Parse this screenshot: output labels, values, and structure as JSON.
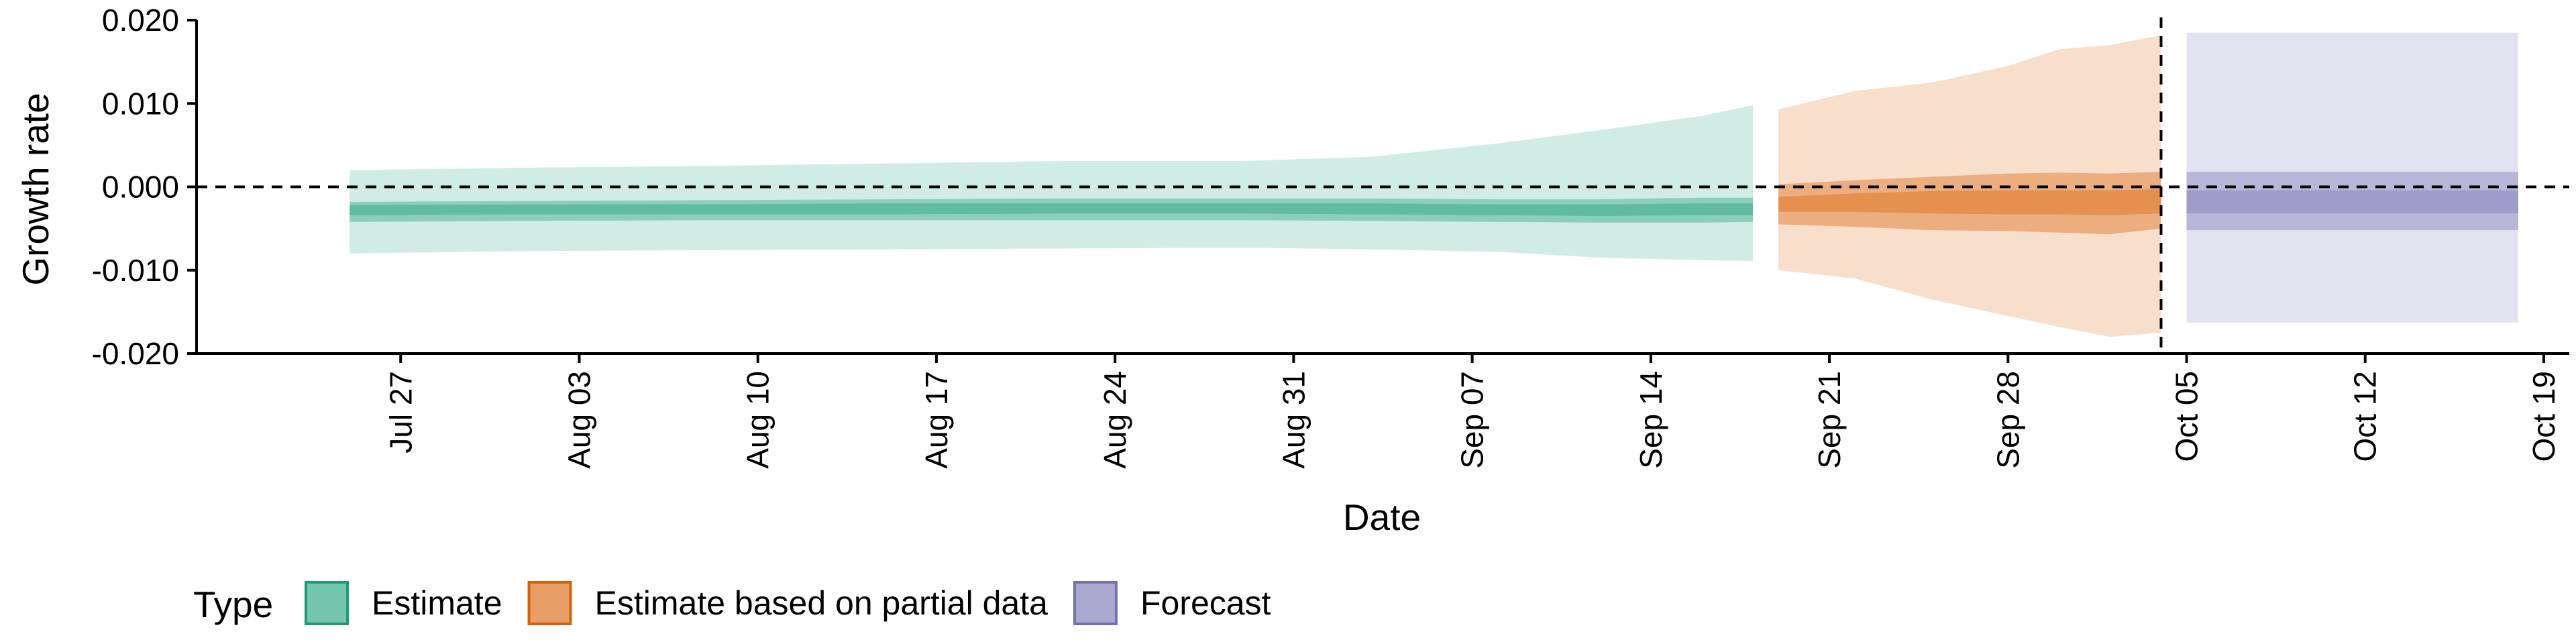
{
  "chart_data": {
    "type": "area",
    "title": "",
    "xlabel": "Date",
    "ylabel": "Growth rate",
    "x_type": "date",
    "xlim": [
      "2020-07-19",
      "2020-10-20"
    ],
    "ylim": [
      -0.02,
      0.02
    ],
    "y_ticks": [
      0.02,
      0.01,
      0.0,
      -0.01,
      -0.02
    ],
    "y_tick_labels": [
      "0.020",
      "0.010",
      "0.000",
      "-0.010",
      "-0.020"
    ],
    "x_ticks": [
      "2020-07-27",
      "2020-08-03",
      "2020-08-10",
      "2020-08-17",
      "2020-08-24",
      "2020-08-31",
      "2020-09-07",
      "2020-09-14",
      "2020-09-21",
      "2020-09-28",
      "2020-10-05",
      "2020-10-12",
      "2020-10-19"
    ],
    "x_tick_labels": [
      "Jul 27",
      "Aug 03",
      "Aug 10",
      "Aug 17",
      "Aug 24",
      "Aug 31",
      "Sep 07",
      "Sep 14",
      "Sep 21",
      "Sep 28",
      "Oct 05",
      "Oct 12",
      "Oct 19"
    ],
    "hlines": [
      {
        "y": 0,
        "style": "dashed"
      }
    ],
    "vlines": [
      {
        "x": "2020-10-04",
        "style": "dashed"
      }
    ],
    "grid": false,
    "legend": {
      "title": "Type",
      "position": "bottom-left",
      "items": [
        {
          "label": "Estimate",
          "color": "#1b9e77"
        },
        {
          "label": "Estimate based on partial data",
          "color": "#d95f02"
        },
        {
          "label": "Forecast",
          "color": "#7570b3"
        }
      ]
    },
    "series": [
      {
        "name": "Estimate",
        "color": "#1b9e77",
        "x": [
          "2020-07-25",
          "2020-08-01",
          "2020-08-08",
          "2020-08-15",
          "2020-08-22",
          "2020-08-29",
          "2020-09-03",
          "2020-09-08",
          "2020-09-12",
          "2020-09-16",
          "2020-09-18"
        ],
        "outer_upper": [
          0.002,
          0.0023,
          0.0025,
          0.0028,
          0.0031,
          0.0031,
          0.0036,
          0.0052,
          0.0068,
          0.0085,
          0.0098
        ],
        "outer_lower": [
          -0.008,
          -0.0077,
          -0.0076,
          -0.0075,
          -0.0074,
          -0.0073,
          -0.0075,
          -0.0078,
          -0.0085,
          -0.0088,
          -0.0089
        ],
        "mid_upper": [
          -0.0018,
          -0.0017,
          -0.0016,
          -0.0015,
          -0.0014,
          -0.0014,
          -0.0014,
          -0.0015,
          -0.0015,
          -0.0013,
          -0.0013
        ],
        "mid_lower": [
          -0.0042,
          -0.0041,
          -0.004,
          -0.004,
          -0.004,
          -0.004,
          -0.0041,
          -0.0042,
          -0.0043,
          -0.0043,
          -0.0042
        ],
        "inner_upper": [
          -0.0022,
          -0.0021,
          -0.0021,
          -0.002,
          -0.002,
          -0.002,
          -0.002,
          -0.0021,
          -0.0021,
          -0.002,
          -0.002
        ],
        "inner_lower": [
          -0.0034,
          -0.0033,
          -0.0033,
          -0.0033,
          -0.0032,
          -0.0032,
          -0.0033,
          -0.0034,
          -0.0035,
          -0.0034,
          -0.0034
        ]
      },
      {
        "name": "Estimate based on partial data",
        "color": "#d95f02",
        "x": [
          "2020-09-19",
          "2020-09-22",
          "2020-09-25",
          "2020-09-28",
          "2020-09-30",
          "2020-10-02",
          "2020-10-04"
        ],
        "outer_upper": [
          0.0093,
          0.0115,
          0.0125,
          0.0145,
          0.0165,
          0.017,
          0.0182
        ],
        "outer_lower": [
          -0.01,
          -0.011,
          -0.0135,
          -0.0155,
          -0.0168,
          -0.018,
          -0.0175
        ],
        "mid_upper": [
          0.0003,
          0.0008,
          0.0012,
          0.0016,
          0.0017,
          0.0016,
          0.0018
        ],
        "mid_lower": [
          -0.0045,
          -0.0048,
          -0.0052,
          -0.0053,
          -0.0055,
          -0.0057,
          -0.005
        ],
        "inner_upper": [
          -0.0012,
          -0.0008,
          -0.0005,
          -0.0004,
          -0.0004,
          -0.0004,
          -0.0003
        ],
        "inner_lower": [
          -0.003,
          -0.003,
          -0.0032,
          -0.0033,
          -0.0033,
          -0.0034,
          -0.0032
        ]
      },
      {
        "name": "Forecast",
        "color": "#7570b3",
        "x": [
          "2020-10-05",
          "2020-10-18"
        ],
        "outer_upper": [
          0.0185,
          0.0185
        ],
        "outer_lower": [
          -0.0163,
          -0.0163
        ],
        "mid_upper": [
          0.0018,
          0.0018
        ],
        "mid_lower": [
          -0.0052,
          -0.0052
        ],
        "inner_upper": [
          -0.0004,
          -0.0004
        ],
        "inner_lower": [
          -0.0032,
          -0.0032
        ]
      }
    ]
  }
}
